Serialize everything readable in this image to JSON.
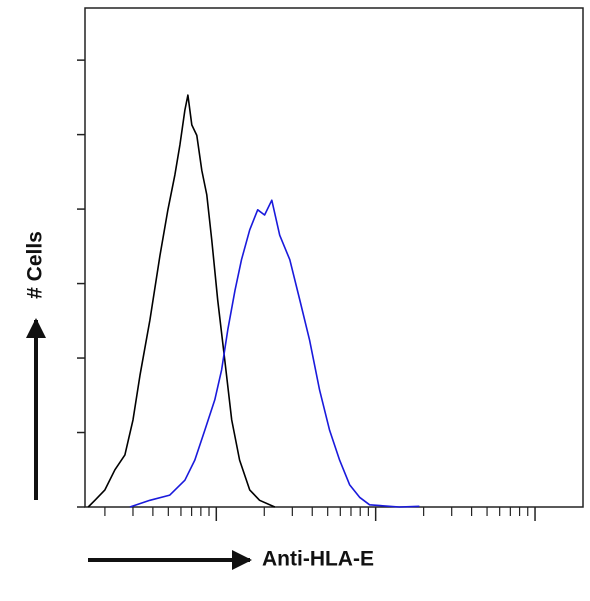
{
  "chart_data": {
    "type": "line",
    "xlabel": "Anti-HLA-E",
    "ylabel": "# Cells",
    "xscale": "log",
    "xlim": [
      1.5,
      2000
    ],
    "ylim": [
      0,
      6.7
    ],
    "xticks": [
      10,
      100,
      1000
    ],
    "xminorticks": [
      2,
      3,
      4,
      5,
      6,
      7,
      8,
      9,
      20,
      30,
      40,
      50,
      60,
      70,
      80,
      90,
      200,
      300,
      400,
      500,
      600,
      700,
      800,
      900
    ],
    "yticks": [
      0,
      1,
      2,
      3,
      4,
      5,
      6
    ],
    "series": [
      {
        "color": "#000000",
        "x": [
          1.57,
          1.73,
          2.0,
          2.31,
          2.67,
          3.0,
          3.32,
          3.83,
          4.43,
          4.97,
          5.5,
          5.91,
          6.35,
          6.63,
          7.02,
          7.55,
          8.11,
          8.72,
          9.37,
          10.2,
          11.3,
          12.5,
          14.0,
          16.2,
          18.7,
          23.3
        ],
        "values": [
          0,
          0.09,
          0.23,
          0.5,
          0.7,
          1.17,
          1.77,
          2.51,
          3.38,
          3.99,
          4.46,
          4.86,
          5.33,
          5.53,
          5.13,
          4.99,
          4.52,
          4.19,
          3.58,
          2.78,
          1.97,
          1.17,
          0.63,
          0.23,
          0.09,
          0
        ]
      },
      {
        "color": "#1a1adc",
        "x": [
          2.87,
          3.83,
          5.11,
          6.35,
          7.33,
          8.47,
          9.79,
          10.8,
          11.8,
          13.1,
          14.4,
          16.2,
          18.2,
          20.1,
          22.3,
          25.0,
          28.9,
          33.4,
          38.5,
          44.5,
          51.4,
          59.4,
          68.6,
          79.3,
          91.6,
          141,
          188
        ],
        "values": [
          0,
          0.09,
          0.16,
          0.36,
          0.63,
          1.03,
          1.44,
          1.84,
          2.38,
          2.91,
          3.32,
          3.72,
          3.99,
          3.92,
          4.12,
          3.65,
          3.32,
          2.78,
          2.24,
          1.57,
          1.03,
          0.63,
          0.3,
          0.13,
          0.03,
          0,
          0.01
        ]
      }
    ]
  }
}
